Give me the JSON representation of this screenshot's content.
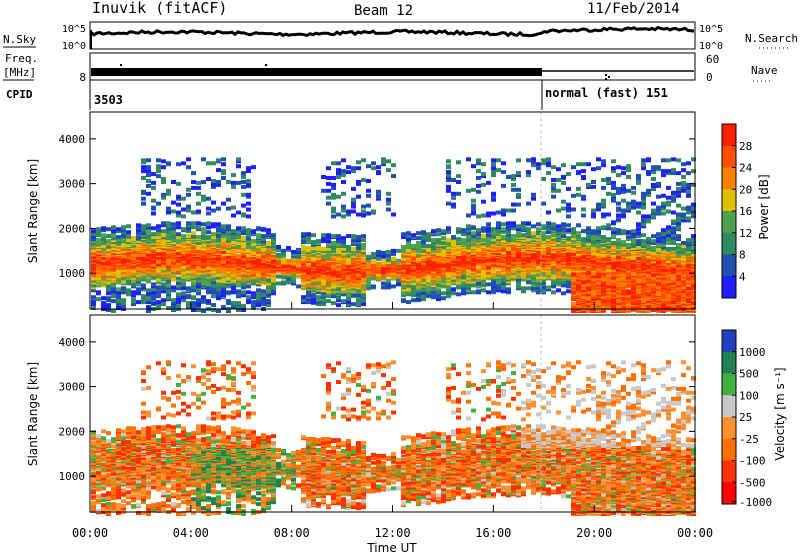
{
  "header": {
    "station": "Inuvik (fitACF)",
    "beam": "Beam 12",
    "date": "11/Feb/2014"
  },
  "panels": {
    "nsky": {
      "label": "N.Sky",
      "ticks": [
        "10^5",
        "10^0"
      ]
    },
    "nsearch": {
      "label": "N.Search",
      "ticks": [
        "10^5",
        "10^0"
      ]
    },
    "freq": {
      "label_top": "Freq.",
      "label_bottom": "[MHz]",
      "ticks": [
        "8"
      ]
    },
    "nave": {
      "label": "Nave",
      "ticks": [
        "60",
        "0"
      ]
    },
    "cpid": {
      "label": "CPID",
      "first": "3503",
      "second": "normal (fast) 151"
    }
  },
  "chart_data": [
    {
      "type": "heatmap",
      "name": "power",
      "ylabel": "Slant Range [km]",
      "y_ticks": [
        "1000",
        "2000",
        "3000",
        "4000"
      ],
      "ylim": [
        200,
        4600
      ],
      "colorbar": {
        "label": "Power [dB]",
        "ticks": [
          "4",
          "8",
          "12",
          "16",
          "20",
          "24",
          "28"
        ]
      }
    },
    {
      "type": "heatmap",
      "name": "velocity",
      "ylabel": "Slant Range [km]",
      "y_ticks": [
        "1000",
        "2000",
        "3000",
        "4000"
      ],
      "ylim": [
        200,
        4600
      ],
      "colorbar": {
        "label": "Velocity [m s⁻¹]",
        "ticks": [
          "1000",
          "500",
          "100",
          "25",
          "-25",
          "-100",
          "-500",
          "-1000"
        ]
      }
    }
  ],
  "x_axis": {
    "label": "Time UT",
    "ticks": [
      "00:00",
      "04:00",
      "08:00",
      "12:00",
      "16:00",
      "20:00",
      "00:00"
    ],
    "range_hours": [
      0,
      24
    ],
    "mode_change_hour": 18
  },
  "colors": {
    "power_scale": [
      "#2020ff",
      "#2050b0",
      "#308a60",
      "#50a050",
      "#e0c000",
      "#ff8000",
      "#ff5000",
      "#ff2000"
    ],
    "velocity_scale": [
      "#2040c0",
      "#208050",
      "#40b040",
      "#c8c8c8",
      "#ff9030",
      "#ff7000",
      "#ff3000",
      "#ff0000"
    ]
  }
}
